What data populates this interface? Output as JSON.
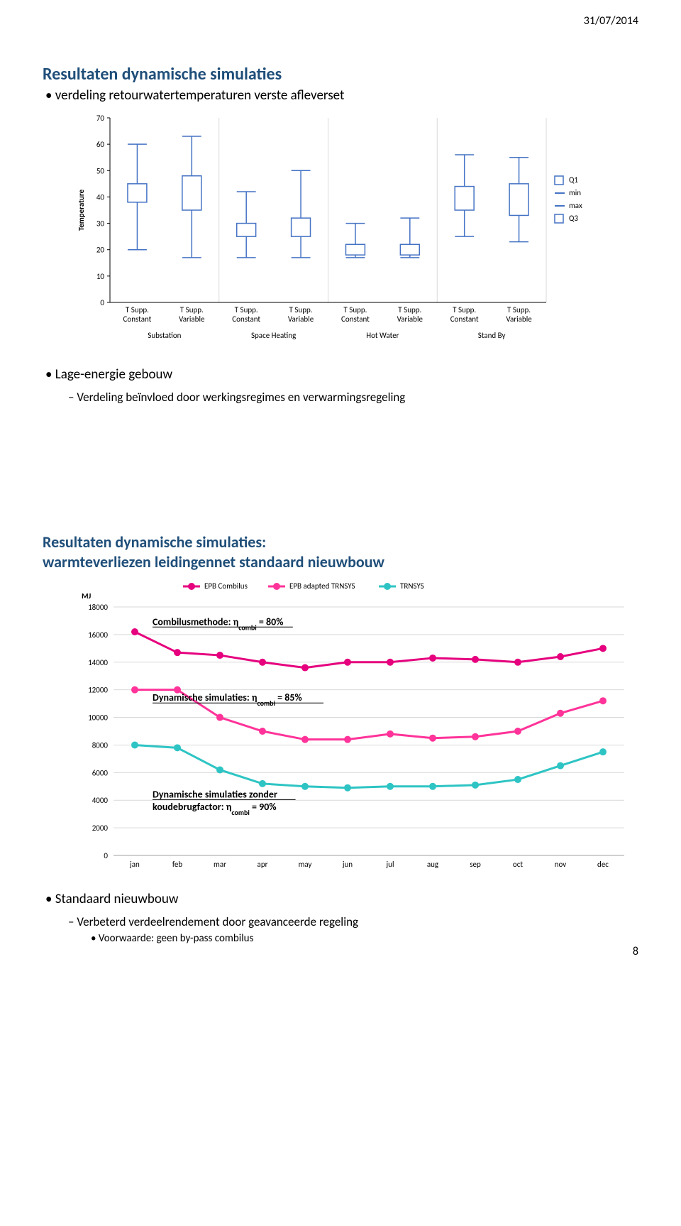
{
  "header": {
    "date": "31/07/2014",
    "page_number": "8"
  },
  "section1": {
    "title": "Resultaten dynamische simulaties",
    "bullet": "verdeling retourwatertemperaturen verste afleverset",
    "sub_bullet_title": "Lage-energie gebouw",
    "sub_bullet_line": "Verdeling beïnvloed door werkingsregimes en verwarmingsregeling"
  },
  "boxplot": {
    "ylabel": "Temperature",
    "ylim": [
      0,
      70
    ],
    "yticks": [
      0,
      10,
      20,
      30,
      40,
      50,
      60,
      70
    ],
    "legend": [
      "Q1",
      "min",
      "max",
      "Q3"
    ],
    "legend_markers": [
      "ud",
      "dash",
      "dash",
      "ud"
    ],
    "group_labels": [
      "Substation",
      "Space Heating",
      "Hot Water",
      "Stand By"
    ],
    "cat_line1": [
      "T Supp.",
      "T Supp.",
      "T Supp.",
      "T Supp.",
      "T Supp.",
      "T Supp.",
      "T Supp.",
      "T Supp."
    ],
    "cat_line2": [
      "Constant",
      "Variable",
      "Constant",
      "Variable",
      "Constant",
      "Variable",
      "Constant",
      "Variable"
    ],
    "boxes": [
      {
        "q1": 38,
        "q3": 45,
        "min": 20,
        "max": 60
      },
      {
        "q1": 35,
        "q3": 48,
        "min": 17,
        "max": 63
      },
      {
        "q1": 25,
        "q3": 30,
        "min": 17,
        "max": 42
      },
      {
        "q1": 25,
        "q3": 32,
        "min": 17,
        "max": 50
      },
      {
        "q1": 18,
        "q3": 22,
        "min": 17,
        "max": 30
      },
      {
        "q1": 18,
        "q3": 22,
        "min": 17,
        "max": 32
      },
      {
        "q1": 35,
        "q3": 44,
        "min": 25,
        "max": 56
      },
      {
        "q1": 33,
        "q3": 45,
        "min": 23,
        "max": 55
      }
    ],
    "box_fill": "#ffffff",
    "box_stroke": "#4472c4",
    "whisker_color": "#4472c4",
    "gridline_color": "#d9d9d9",
    "axis_color": "#000000",
    "background": "#ffffff"
  },
  "section2": {
    "title_line1": "Resultaten dynamische simulaties:",
    "title_line2": "warmteverliezen leidingennet standaard nieuwbouw",
    "bullet": "Standaard nieuwbouw",
    "sub_bullet": "Verbeterd verdeelrendement door geavanceerde regeling",
    "subsub_bullet": "Voorwaarde: geen by-pass combilus",
    "anno1": "Combilusmethode: η",
    "anno1_sub": "combi",
    "anno1_tail": " = 80%",
    "anno2": "Dynamische simulaties: η",
    "anno2_sub": "combi",
    "anno2_tail": " = 85%",
    "anno3a": "Dynamische simulaties zonder",
    "anno3b": "koudebrugfactor: η",
    "anno3b_sub": "combi",
    "anno3b_tail": " = 90%"
  },
  "linechart": {
    "ylabel": "MJ",
    "ylim": [
      0,
      18000
    ],
    "yticks": [
      0,
      2000,
      4000,
      6000,
      8000,
      10000,
      12000,
      14000,
      16000,
      18000
    ],
    "xcats": [
      "jan",
      "feb",
      "mar",
      "apr",
      "may",
      "jun",
      "jul",
      "aug",
      "sep",
      "oct",
      "nov",
      "dec"
    ],
    "legend": [
      {
        "name": "EPB Combilus",
        "color": "#e6007e"
      },
      {
        "name": "EPB adapted TRNSYS",
        "color": "#ff3399"
      },
      {
        "name": "TRNSYS",
        "color": "#2ec4c4"
      }
    ],
    "series": [
      {
        "color": "#e6007e",
        "values": [
          16200,
          14700,
          14500,
          14000,
          13600,
          14000,
          14000,
          14300,
          14200,
          14000,
          14400,
          15000
        ]
      },
      {
        "color": "#ff3399",
        "values": [
          12000,
          12000,
          10000,
          9000,
          8400,
          8400,
          8800,
          8500,
          8600,
          9000,
          10300,
          11200
        ]
      },
      {
        "color": "#2ec4c4",
        "values": [
          8000,
          7800,
          6200,
          5200,
          5000,
          4900,
          5000,
          5000,
          5100,
          5500,
          6500,
          7500
        ]
      }
    ],
    "marker_radius": 5,
    "line_width": 3,
    "gridline_color": "#d9d9d9",
    "axis_color": "#a0a0a0",
    "background": "#ffffff"
  }
}
